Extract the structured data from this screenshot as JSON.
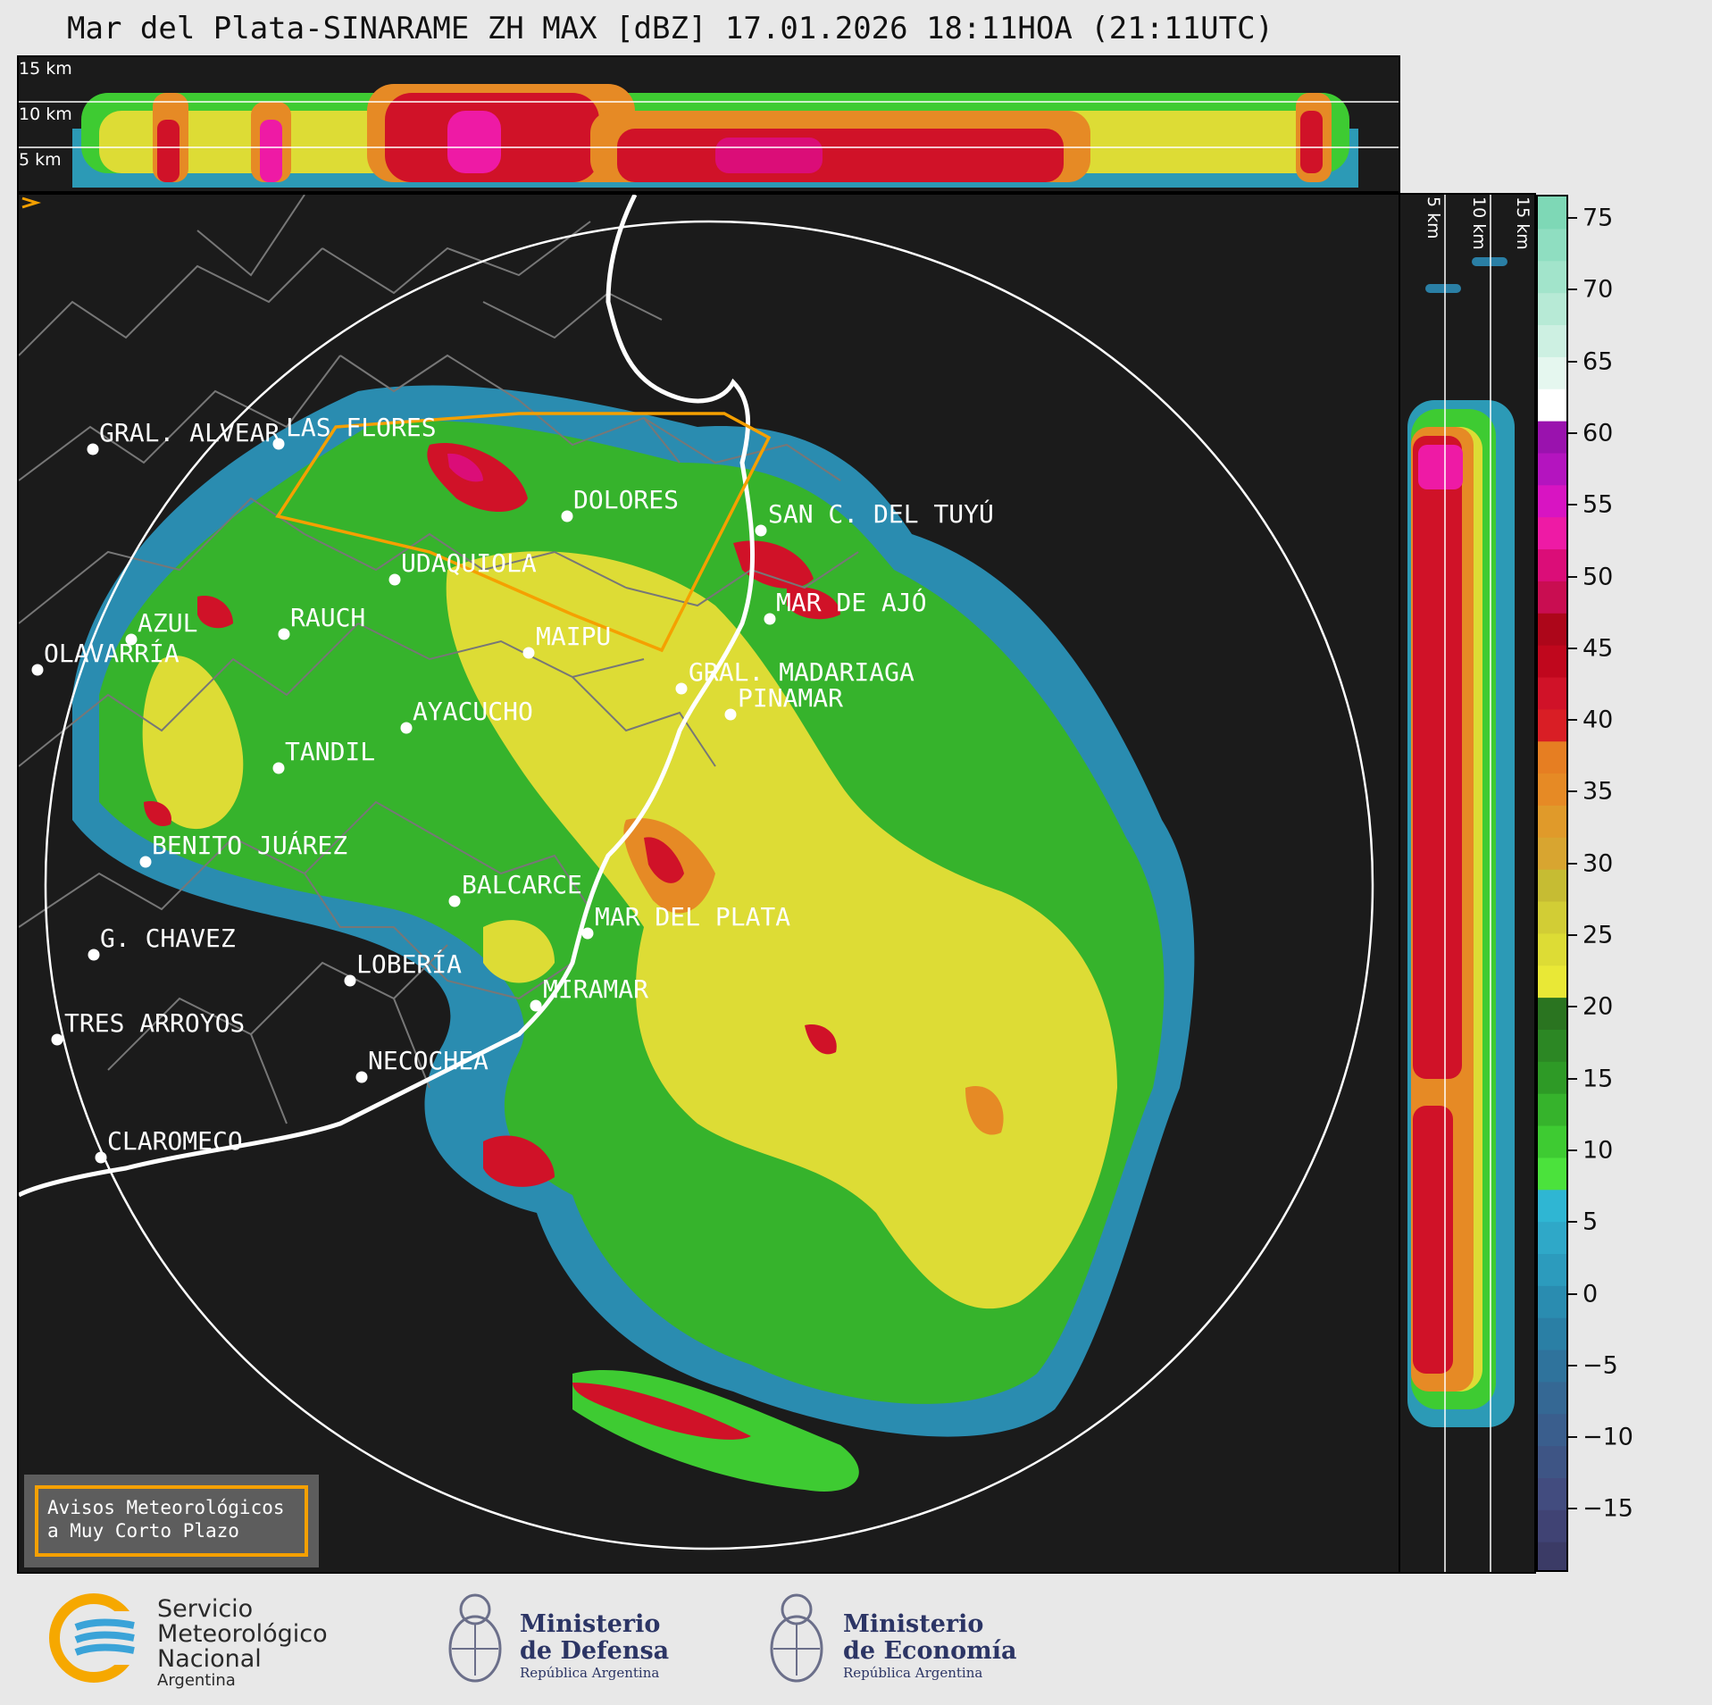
{
  "title": "Mar del Plata-SINARAME ZH MAX [dBZ] 17.01.2026 18:11HOA (21:11UTC)",
  "top_strip": {
    "height_labels": [
      "15 km",
      "10 km",
      "5 km"
    ]
  },
  "side_strip": {
    "height_labels": [
      "5 km",
      "10 km",
      "15 km"
    ]
  },
  "colorbar": {
    "unit": "dBZ",
    "ticks": [
      "75",
      "70",
      "65",
      "60",
      "55",
      "50",
      "45",
      "40",
      "35",
      "30",
      "25",
      "20",
      "15",
      "10",
      "5",
      "0",
      "−5",
      "−10",
      "−15"
    ],
    "colors": [
      "#3b3b66",
      "#404374",
      "#424c7f",
      "#3e5585",
      "#3a5e8d",
      "#356894",
      "#2f739c",
      "#2a7fa5",
      "#2a8cb0",
      "#2c9bbd",
      "#2fa8c8",
      "#2fb6d3",
      "#4be23c",
      "#3ecb32",
      "#36b32c",
      "#2e9a26",
      "#2c8724",
      "#2a7420",
      "#e9e836",
      "#dddc35",
      "#d2cd35",
      "#c6bc33",
      "#d8a530",
      "#e09a2a",
      "#e68a25",
      "#e67e22",
      "#d91e25",
      "#d01228",
      "#c0071d",
      "#ad061a",
      "#c90d51",
      "#db0d78",
      "#ee1aa5",
      "#d814c2",
      "#b414bf",
      "#9a12ae",
      "#ffffff",
      "#e5f7ef",
      "#cdf0e2",
      "#b7ead6",
      "#a2e4cb",
      "#8fdec1",
      "#7ed8b6"
    ]
  },
  "cities": [
    {
      "name": "GRAL. ALVEAR"
    },
    {
      "name": "LAS FLORES"
    },
    {
      "name": "DOLORES"
    },
    {
      "name": "SAN C. DEL TUYÚ"
    },
    {
      "name": "UDAQUIOLA"
    },
    {
      "name": "MAR DE AJÓ"
    },
    {
      "name": "AZUL"
    },
    {
      "name": "RAUCH"
    },
    {
      "name": "MAIPU"
    },
    {
      "name": "OLAVARRÍA"
    },
    {
      "name": "GRAL. MADARIAGA"
    },
    {
      "name": "PINAMAR"
    },
    {
      "name": "AYACUCHO"
    },
    {
      "name": "TANDIL"
    },
    {
      "name": "BENITO JUÁREZ"
    },
    {
      "name": "BALCARCE"
    },
    {
      "name": "MAR DEL PLATA"
    },
    {
      "name": "G. CHAVEZ"
    },
    {
      "name": "LOBERÍA"
    },
    {
      "name": "MIRAMAR"
    },
    {
      "name": "TRES ARROYOS"
    },
    {
      "name": "NECOCHEA"
    },
    {
      "name": "CLAROMECO"
    }
  ],
  "warnings_box": {
    "line1": "Avisos Meteorológicos",
    "line2": "a Muy Corto Plazo"
  },
  "logos": {
    "smn": {
      "line1": "Servicio",
      "line2": "Meteorológico",
      "line3": "Nacional",
      "line4": "Argentina"
    },
    "defensa": {
      "line1": "Ministerio",
      "line2": "de Defensa",
      "line3": "República Argentina"
    },
    "economia": {
      "line1": "Ministerio",
      "line2": "de Economía",
      "line3": "República Argentina"
    }
  }
}
